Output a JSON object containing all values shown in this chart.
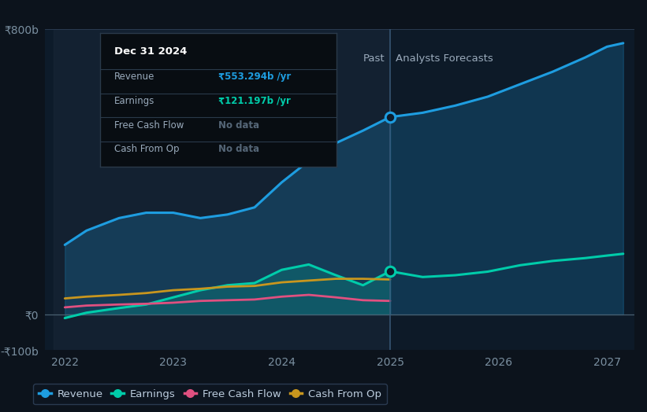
{
  "bg_color": "#0c131c",
  "plot_bg_color": "#0d1b2a",
  "grid_color": "#1e2d3d",
  "divider_x": 2025.0,
  "x_past": [
    2022.0,
    2022.2,
    2022.5,
    2022.75,
    2023.0,
    2023.25,
    2023.5,
    2023.75,
    2024.0,
    2024.25,
    2024.5,
    2024.75,
    2025.0
  ],
  "x_forecast": [
    2025.0,
    2025.3,
    2025.6,
    2025.9,
    2026.2,
    2026.5,
    2026.8,
    2027.0,
    2027.15
  ],
  "revenue_past": [
    195,
    235,
    270,
    285,
    285,
    270,
    280,
    300,
    370,
    430,
    480,
    515,
    553
  ],
  "revenue_forecast": [
    553,
    565,
    585,
    610,
    645,
    680,
    720,
    750,
    760
  ],
  "earnings_past": [
    -10,
    5,
    18,
    28,
    48,
    68,
    82,
    88,
    125,
    140,
    110,
    82,
    121
  ],
  "earnings_forecast": [
    121,
    105,
    110,
    120,
    138,
    150,
    158,
    165,
    170
  ],
  "fcf_past": [
    20,
    25,
    28,
    30,
    33,
    38,
    40,
    42,
    50,
    55,
    48,
    40,
    38
  ],
  "cashop_past": [
    45,
    50,
    55,
    60,
    68,
    72,
    78,
    80,
    90,
    95,
    100,
    100,
    98
  ],
  "revenue_color": "#1e9de0",
  "earnings_color": "#00ccaa",
  "fcf_color": "#e05080",
  "cashop_color": "#c8961e",
  "ylim": [
    -100,
    800
  ],
  "xticks": [
    2022,
    2023,
    2024,
    2025,
    2026,
    2027
  ],
  "tick_color": "#7a8fa0",
  "tick_fontsize": 10,
  "past_label": "Past",
  "forecast_label": "Analysts Forecasts",
  "legend_items": [
    "Revenue",
    "Earnings",
    "Free Cash Flow",
    "Cash From Op"
  ],
  "legend_colors": [
    "#1e9de0",
    "#00ccaa",
    "#e05080",
    "#c8961e"
  ],
  "tooltip_title": "Dec 31 2024",
  "tooltip_bg": "#080d12",
  "tooltip_border": "#2a3a4a",
  "revenue_val": "₹553.294b /yr",
  "earnings_val": "₹121.197b /yr"
}
